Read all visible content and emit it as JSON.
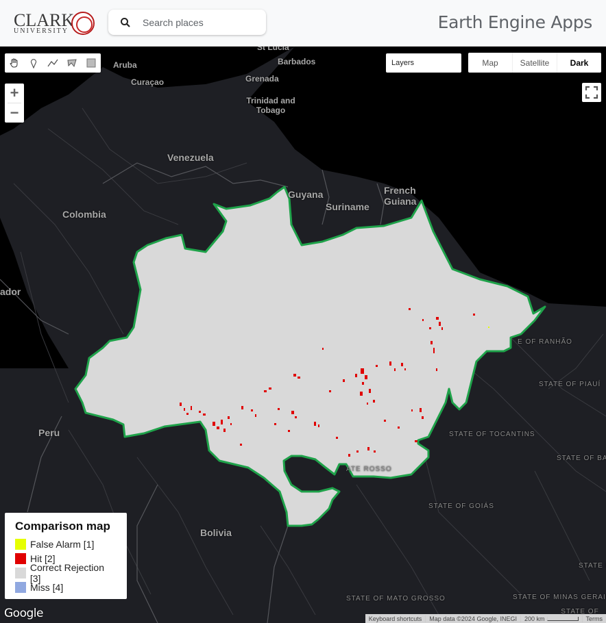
{
  "header": {
    "logo": {
      "name": "CLARK",
      "subtitle": "UNIVERSITY"
    },
    "search_placeholder": "Search places",
    "app_title": "Earth Engine Apps"
  },
  "map_controls": {
    "drawing_tools": [
      "hand-icon",
      "marker-icon",
      "line-icon",
      "polygon-icon",
      "rectangle-icon"
    ],
    "zoom_in": "+",
    "zoom_out": "−",
    "layers_label": "Layers",
    "map_types": [
      {
        "label": "Map",
        "active": false
      },
      {
        "label": "Satellite",
        "active": false
      },
      {
        "label": "Dark",
        "active": true
      }
    ]
  },
  "place_labels": {
    "st_lucia": "St Lucia",
    "aruba": "Aruba",
    "barbados": "Barbados",
    "curacao": "Curaçao",
    "grenada": "Grenada",
    "trinidad": "Trinidad and Tobago",
    "venezuela": "Venezuela",
    "guyana": "Guyana",
    "suriname": "Suriname",
    "french_guiana": "French Guiana",
    "colombia": "Colombia",
    "ecuador": "ador",
    "peru": "Peru",
    "bolivia": "Bolivia",
    "maranhao": "E OF RANHÃO",
    "piaui": "STATE OF PIAUÍ",
    "tocantins": "STATE OF TOCANTINS",
    "bahia": "STATE OF BAHIA",
    "goias": "STATE OF GOIÁS",
    "minas": "STATE OF MINAS GERAIS",
    "espirito": "STATE ESPÍRI SANT",
    "mato_grosso": "STATE OF MATO GROSSO",
    "mato_grosso_frag": "ATE ROSSO",
    "bottom_right": "STATE OF"
  },
  "legend": {
    "title": "Comparison map",
    "items": [
      {
        "label": "False Alarm [1]",
        "color": "#e6ff00"
      },
      {
        "label": "Hit [2]",
        "color": "#e00000"
      },
      {
        "label": "Correct Rejection [3]",
        "color": "#d9d9d9"
      },
      {
        "label": "Miss [4]",
        "color": "#90a8e0"
      }
    ]
  },
  "footer": {
    "google": "Google",
    "shortcuts": "Keyboard shortcuts",
    "map_data": "Map data ©2024 Google, INEGI",
    "scale": "200 km",
    "terms": "Terms"
  },
  "colors": {
    "map_background": "#1e1f24",
    "region_fill": "#d9d9d9",
    "region_border": "#1fa24a",
    "hit": "#e00000"
  }
}
